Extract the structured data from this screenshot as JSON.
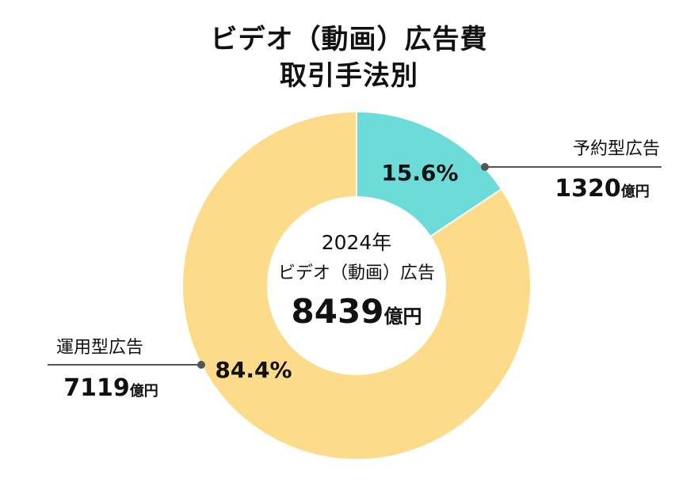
{
  "title_line1": "ビデオ（動画）広告費",
  "title_line2": "取引手法別",
  "center": {
    "year": "2024年",
    "subtitle": "ビデオ（動画）広告",
    "total_value": "8439",
    "total_unit": "億円"
  },
  "colors": {
    "reserved": "#6ddbd7",
    "programmatic": "#fcdc8a",
    "leader": "#555555"
  },
  "chart_data": {
    "type": "pie",
    "title": "ビデオ（動画）広告費 取引手法別",
    "slices": [
      {
        "label": "予約型広告",
        "value": 1320,
        "unit": "億円",
        "percent": "15.6%",
        "color": "#6ddbd7"
      },
      {
        "label": "運用型広告",
        "value": 7119,
        "unit": "億円",
        "percent": "84.4%",
        "color": "#fcdc8a"
      }
    ],
    "total": 8439
  },
  "annotations": {
    "reserved": {
      "name": "予約型広告",
      "value": "1320",
      "unit": "億円"
    },
    "programmatic": {
      "name": "運用型広告",
      "value": "7119",
      "unit": "億円"
    }
  }
}
